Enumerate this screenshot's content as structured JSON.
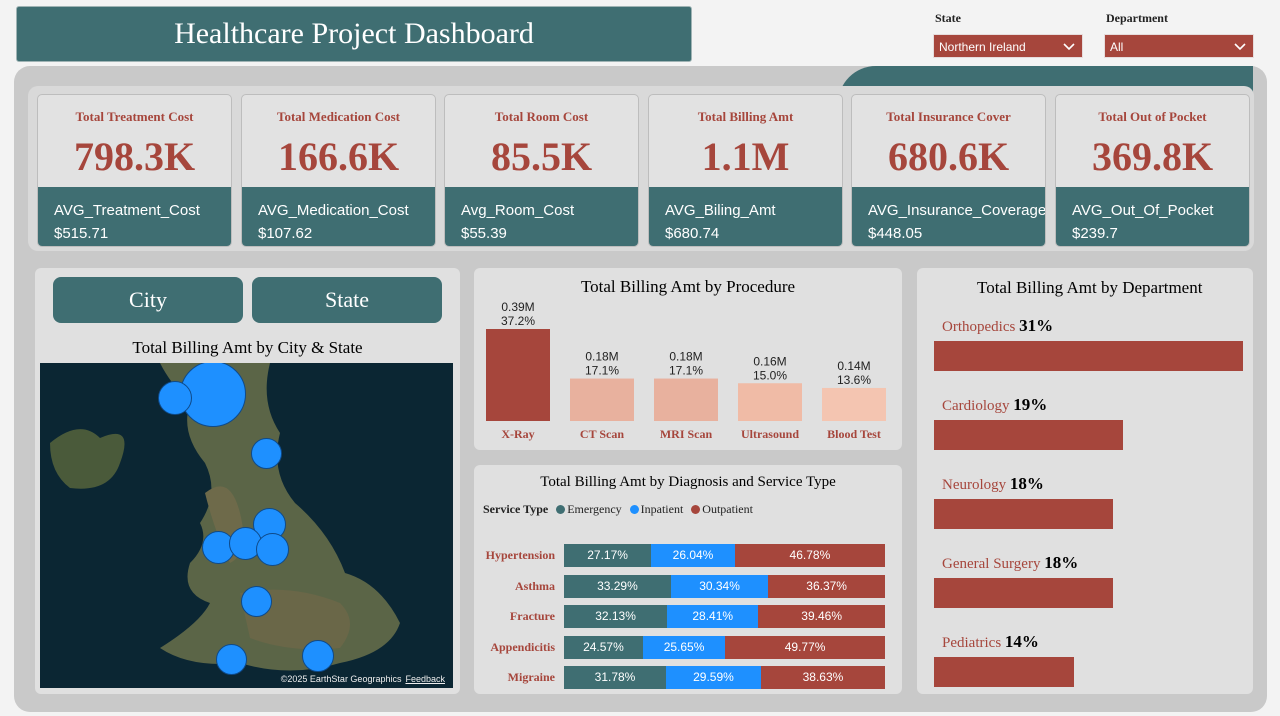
{
  "title": "Healthcare Project Dashboard",
  "filters": {
    "state": {
      "label": "State",
      "value": "Northern Ireland"
    },
    "department": {
      "label": "Department",
      "value": "All"
    }
  },
  "kpis": [
    {
      "title": "Total Treatment Cost",
      "value": "798.3K",
      "avg_label": "AVG_Treatment_Cost",
      "avg_value": "$515.71"
    },
    {
      "title": "Total Medication Cost",
      "value": "166.6K",
      "avg_label": "AVG_Medication_Cost",
      "avg_value": "$107.62"
    },
    {
      "title": "Total Room Cost",
      "value": "85.5K",
      "avg_label": "Avg_Room_Cost",
      "avg_value": "$55.39"
    },
    {
      "title": "Total Billing Amt",
      "value": "1.1M",
      "avg_label": "AVG_Biling_Amt",
      "avg_value": "$680.74"
    },
    {
      "title": "Total Insurance Cover",
      "value": "680.6K",
      "avg_label": "AVG_Insurance_Coverage",
      "avg_value": "$448.05"
    },
    {
      "title": "Total Out of Pocket",
      "value": "369.8K",
      "avg_label": "AVG_Out_Of_Pocket",
      "avg_value": "$239.7"
    }
  ],
  "map_panel": {
    "toggle_city": "City",
    "toggle_state": "State",
    "title": "Total Billing Amt by City & State",
    "attribution": "©2025 EarthStar Geographics",
    "feedback": "Feedback"
  },
  "colors": {
    "teal": "#3f6e72",
    "brand": "#a6463c",
    "inpatient": "#1e90ff"
  },
  "chart_data": [
    {
      "type": "bar",
      "title": "Total Billing Amt by Procedure",
      "categories": [
        "X-Ray",
        "CT Scan",
        "MRI Scan",
        "Ultrasound",
        "Blood Test"
      ],
      "values": [
        0.39,
        0.18,
        0.18,
        0.16,
        0.14
      ],
      "value_labels": [
        "0.39M",
        "0.18M",
        "0.18M",
        "0.16M",
        "0.14M"
      ],
      "percent_labels": [
        "37.2%",
        "17.1%",
        "17.1%",
        "15.0%",
        "13.6%"
      ],
      "colors": [
        "#a6463c",
        "#e8b19e",
        "#e8b19e",
        "#f0bba6",
        "#f4c5b1"
      ],
      "ylim": [
        0,
        0.39
      ]
    },
    {
      "type": "bar",
      "stacked": true,
      "orientation": "horizontal",
      "title": "Total Billing Amt by Diagnosis and Service Type",
      "legend_title": "Service Type",
      "categories": [
        "Hypertension",
        "Asthma",
        "Fracture",
        "Appendicitis",
        "Migraine"
      ],
      "series": [
        {
          "name": "Emergency",
          "color": "#3f6e72",
          "values": [
            27.17,
            33.29,
            32.13,
            24.57,
            31.78
          ]
        },
        {
          "name": "Inpatient",
          "color": "#1e90ff",
          "values": [
            26.04,
            30.34,
            28.41,
            25.65,
            29.59
          ]
        },
        {
          "name": "Outpatient",
          "color": "#a6463c",
          "values": [
            46.78,
            36.37,
            39.46,
            49.77,
            38.63
          ]
        }
      ]
    },
    {
      "type": "bar",
      "orientation": "horizontal",
      "title": "Total Billing Amt by Department",
      "categories": [
        "Orthopedics",
        "Cardiology",
        "Neurology",
        "General Surgery",
        "Pediatrics"
      ],
      "values": [
        31,
        19,
        18,
        18,
        14
      ],
      "value_labels": [
        "31%",
        "19%",
        "18%",
        "18%",
        "14%"
      ]
    }
  ]
}
